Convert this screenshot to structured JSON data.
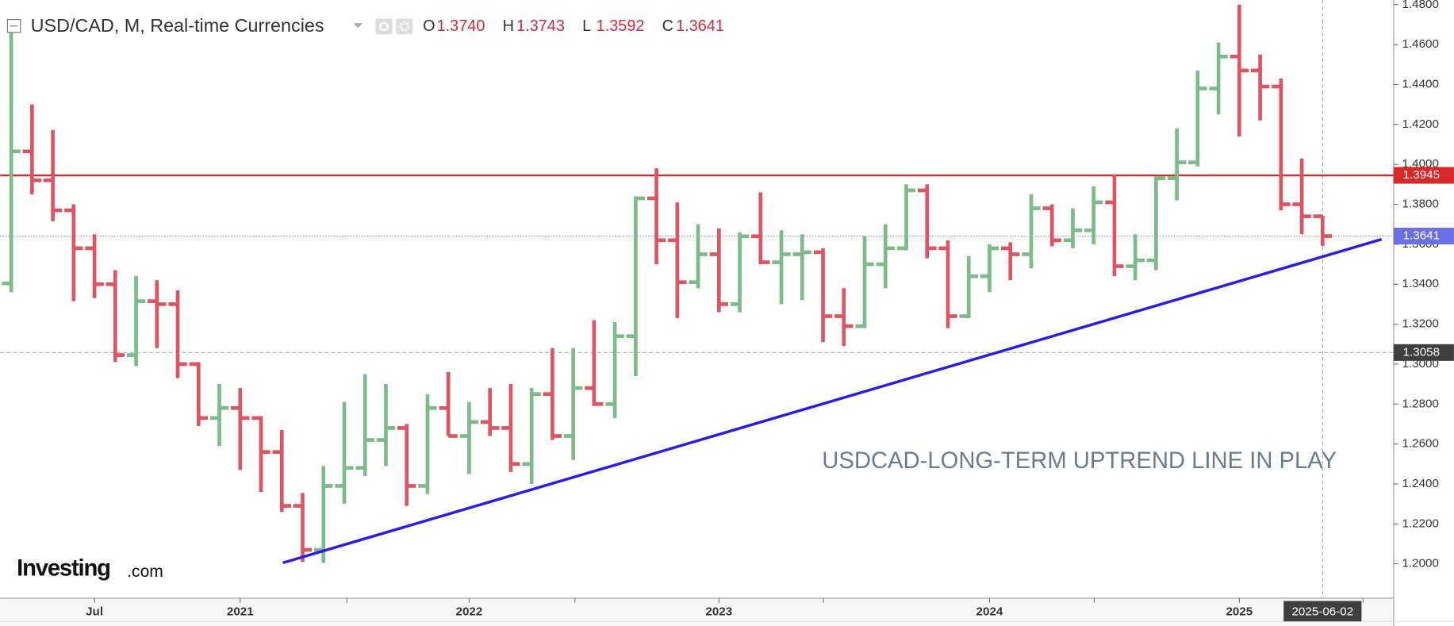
{
  "header": {
    "symbol": "USD/CAD, M, Real-time Currencies",
    "ohlc": [
      {
        "key": "O",
        "value": "1.3740"
      },
      {
        "key": "H",
        "value": "1.3743"
      },
      {
        "key": "L",
        "value": "1.3592"
      },
      {
        "key": "C",
        "value": "1.3641"
      }
    ]
  },
  "logo": {
    "brand": "Investing",
    "suffix": ".com"
  },
  "chart_data": {
    "type": "ohlc",
    "annotation": "USDCAD-LONG-TERM UPTREND LINE IN PLAY",
    "up_color": "#7dbb8a",
    "down_color": "#dd5562",
    "categories": [
      null,
      null,
      null,
      null,
      "Jul",
      null,
      null,
      null,
      null,
      null,
      null,
      "2021",
      null,
      null,
      null,
      null,
      null,
      null,
      null,
      null,
      null,
      null,
      "2022",
      null,
      null,
      null,
      null,
      null,
      null,
      null,
      null,
      null,
      null,
      null,
      "2023",
      null,
      null,
      null,
      null,
      null,
      null,
      null,
      null,
      null,
      null,
      null,
      null,
      "2024",
      null,
      null,
      null,
      null,
      null,
      null,
      null,
      null,
      null,
      null,
      null,
      "2025",
      null,
      null,
      null,
      null
    ],
    "open": [
      1.3404,
      1.4065,
      1.392,
      1.377,
      1.358,
      1.34,
      1.3045,
      1.3315,
      1.33,
      1.3,
      1.273,
      1.278,
      1.273,
      1.256,
      1.229,
      1.207,
      1.239,
      1.248,
      1.262,
      1.268,
      1.239,
      1.278,
      1.264,
      1.271,
      1.268,
      1.25,
      1.285,
      1.264,
      1.288,
      1.28,
      1.314,
      1.383,
      1.362,
      1.341,
      1.355,
      1.33,
      1.364,
      1.351,
      1.355,
      1.356,
      1.324,
      1.319,
      1.35,
      1.358,
      1.387,
      1.358,
      1.324,
      1.344,
      1.358,
      1.355,
      1.378,
      1.362,
      1.367,
      1.381,
      1.349,
      1.352,
      1.393,
      1.401,
      1.438,
      1.454,
      1.447,
      1.439,
      1.38,
      1.374
    ],
    "high": [
      1.4667,
      1.43,
      1.4172,
      1.38,
      1.365,
      1.347,
      1.344,
      1.342,
      1.337,
      1.301,
      1.29,
      1.288,
      1.274,
      1.267,
      1.2355,
      1.249,
      1.281,
      1.295,
      1.29,
      1.27,
      1.285,
      1.296,
      1.281,
      1.288,
      1.29,
      1.288,
      1.308,
      1.308,
      1.322,
      1.321,
      1.384,
      1.398,
      1.381,
      1.37,
      1.368,
      1.366,
      1.386,
      1.367,
      1.365,
      1.358,
      1.338,
      1.364,
      1.37,
      1.39,
      1.39,
      1.362,
      1.354,
      1.36,
      1.361,
      1.385,
      1.38,
      1.378,
      1.389,
      1.395,
      1.365,
      1.394,
      1.418,
      1.447,
      1.461,
      1.48,
      1.455,
      1.443,
      1.403,
      1.3743
    ],
    "low": [
      1.336,
      1.385,
      1.3715,
      1.3315,
      1.333,
      1.301,
      1.299,
      1.308,
      1.293,
      1.269,
      1.259,
      1.247,
      1.236,
      1.226,
      1.201,
      1.2005,
      1.23,
      1.244,
      1.249,
      1.229,
      1.235,
      1.264,
      1.245,
      1.264,
      1.246,
      1.24,
      1.262,
      1.252,
      1.279,
      1.273,
      1.294,
      1.35,
      1.323,
      1.338,
      1.326,
      1.326,
      1.35,
      1.33,
      1.332,
      1.311,
      1.309,
      1.318,
      1.338,
      1.357,
      1.353,
      1.318,
      1.323,
      1.336,
      1.342,
      1.348,
      1.359,
      1.358,
      1.36,
      1.344,
      1.342,
      1.347,
      1.382,
      1.399,
      1.425,
      1.414,
      1.422,
      1.377,
      1.365,
      1.3592
    ],
    "close": [
      1.4065,
      1.392,
      1.377,
      1.358,
      1.34,
      1.3045,
      1.3315,
      1.33,
      1.3,
      1.273,
      1.278,
      1.273,
      1.256,
      1.229,
      1.207,
      1.239,
      1.248,
      1.262,
      1.268,
      1.239,
      1.278,
      1.264,
      1.271,
      1.268,
      1.25,
      1.285,
      1.264,
      1.288,
      1.28,
      1.314,
      1.383,
      1.362,
      1.341,
      1.355,
      1.33,
      1.364,
      1.351,
      1.355,
      1.356,
      1.324,
      1.319,
      1.35,
      1.358,
      1.387,
      1.358,
      1.324,
      1.344,
      1.358,
      1.355,
      1.378,
      1.362,
      1.367,
      1.381,
      1.349,
      1.352,
      1.393,
      1.401,
      1.438,
      1.454,
      1.447,
      1.439,
      1.38,
      1.374,
      1.3641
    ],
    "ylim": [
      1.1828,
      1.4823
    ],
    "yticks": [
      {
        "value": 1.2,
        "label": "1.2000"
      },
      {
        "value": 1.22,
        "label": "1.2200"
      },
      {
        "value": 1.24,
        "label": "1.2400"
      },
      {
        "value": 1.26,
        "label": "1.2600"
      },
      {
        "value": 1.28,
        "label": "1.2800"
      },
      {
        "value": 1.3,
        "label": "1.3000"
      },
      {
        "value": 1.32,
        "label": "1.3200"
      },
      {
        "value": 1.34,
        "label": "1.3400"
      },
      {
        "value": 1.36,
        "label": "1.3600"
      },
      {
        "value": 1.38,
        "label": "1.3800"
      },
      {
        "value": 1.4,
        "label": "1.4000"
      },
      {
        "value": 1.42,
        "label": "1.4200"
      },
      {
        "value": 1.44,
        "label": "1.4400"
      },
      {
        "value": 1.46,
        "label": "1.4600"
      },
      {
        "value": 1.48,
        "label": "1.4800"
      }
    ],
    "price_lines": [
      {
        "value": 1.3945,
        "label": "1.3945",
        "color": "#d8282a",
        "style": "solid"
      },
      {
        "value": 1.3641,
        "label": "1.3641",
        "color": "#6b6fe6",
        "style": "dotted"
      },
      {
        "value": 1.3058,
        "label": "1.3058",
        "color": "#3f3f3f",
        "style": "dashed"
      }
    ],
    "trendline": {
      "y": [
        1.2005,
        1.3625
      ],
      "color": "#2a1ee0"
    },
    "crosshair_label": "2025-06-02"
  }
}
